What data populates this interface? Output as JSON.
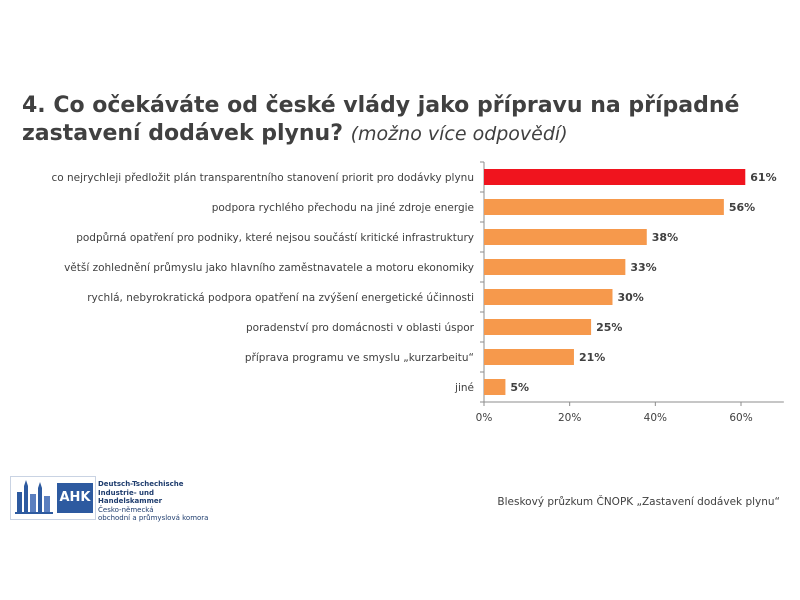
{
  "title": {
    "main": "4. Co očekáváte od české vlády jako přípravu na případné zastavení dodávek plynu?",
    "sub": "(možno více odpovědí)"
  },
  "chart_data": {
    "type": "bar",
    "orientation": "horizontal",
    "categories": [
      "co nejrychleji předložit plán transparentního stanovení priorit pro dodávky plynu",
      "podpora rychlého přechodu na jiné zdroje energie",
      "podpůrná opatření pro podniky, které nejsou součástí kritické infrastruktury",
      "větší zohlednění průmyslu jako hlavního zaměstnavatele a motoru ekonomiky",
      "rychlá, nebyrokratická podpora opatření na zvýšení energetické účinnosti",
      "poradenství pro domácnosti v oblasti úspor",
      "příprava programu ve smyslu „kurzarbeitu“",
      "jiné"
    ],
    "values": [
      61,
      56,
      38,
      33,
      30,
      25,
      21,
      5
    ],
    "value_labels": [
      "61%",
      "56%",
      "38%",
      "33%",
      "30%",
      "25%",
      "21%",
      "5%"
    ],
    "highlight_index": 0,
    "xlim": [
      0,
      70
    ],
    "xticks": [
      0,
      20,
      40,
      60
    ],
    "xtick_labels": [
      "0%",
      "20%",
      "40%",
      "60%"
    ],
    "colors": {
      "highlight": "#f0141e",
      "bar": "#f6994c",
      "axis": "#8c8c8c",
      "grid": "#d9d9d9"
    }
  },
  "logo": {
    "name": "AHK",
    "lines": [
      "Deutsch-Tschechische",
      "Industrie- und Handelskammer",
      "Česko-německá",
      "obchodní a průmyslová komora"
    ]
  },
  "footer": "Bleskový průzkum ČNOPK „Zastavení dodávek plynu“"
}
